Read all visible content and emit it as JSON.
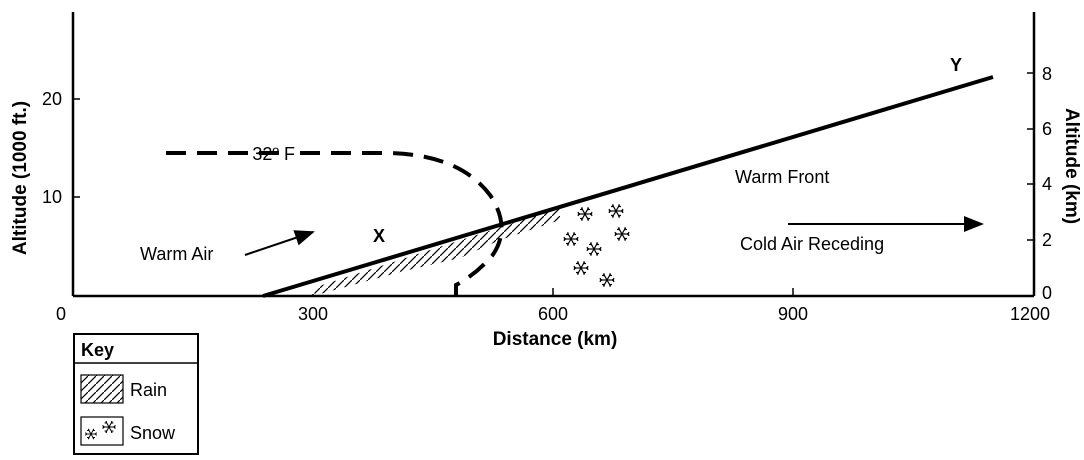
{
  "axes": {
    "x_title": "Distance (km)",
    "x_ticks": [
      "0",
      "300",
      "600",
      "900",
      "1200"
    ],
    "y_left_title": "Altitude (1000 ft.)",
    "y_left_ticks": [
      "10",
      "20"
    ],
    "y_right_title": "Altitude (km)",
    "y_right_ticks": [
      "0",
      "2",
      "4",
      "6",
      "8"
    ]
  },
  "labels": {
    "point_x": "X",
    "point_y": "Y",
    "freezing_line": "32º F",
    "warm_air": "Warm Air",
    "warm_front": "Warm Front",
    "cold_air": "Cold Air Receding"
  },
  "key": {
    "title": "Key",
    "rain": "Rain",
    "snow": "Snow"
  }
}
